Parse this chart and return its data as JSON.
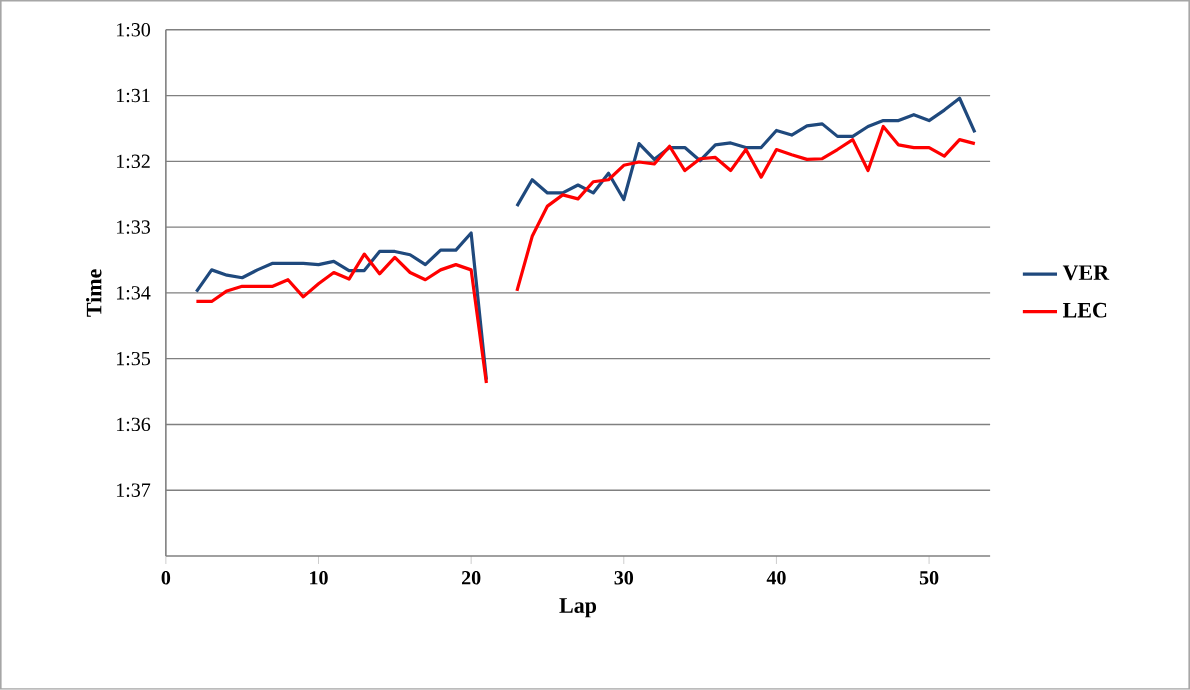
{
  "chart_data": {
    "type": "line",
    "xlabel": "Lap",
    "ylabel": "Time",
    "xlim": [
      0,
      54
    ],
    "xticks": [
      0,
      10,
      20,
      30,
      40,
      50
    ],
    "ylim": [
      98,
      90
    ],
    "yticks": [
      {
        "value": 90,
        "label": "1:30"
      },
      {
        "value": 91,
        "label": "1:31"
      },
      {
        "value": 92,
        "label": "1:32"
      },
      {
        "value": 93,
        "label": "1:33"
      },
      {
        "value": 94,
        "label": "1:34"
      },
      {
        "value": 95,
        "label": "1:35"
      },
      {
        "value": 96,
        "label": "1:36"
      },
      {
        "value": 97,
        "label": "1:37"
      }
    ],
    "x": [
      2,
      3,
      4,
      5,
      6,
      7,
      8,
      9,
      10,
      11,
      12,
      13,
      14,
      15,
      16,
      17,
      18,
      19,
      20,
      21,
      22,
      23,
      24,
      25,
      26,
      27,
      28,
      29,
      30,
      31,
      32,
      33,
      34,
      35,
      36,
      37,
      38,
      39,
      40,
      41,
      42,
      43,
      44,
      45,
      46,
      47,
      48,
      49,
      50,
      51,
      52,
      53
    ],
    "series": [
      {
        "name": "VER",
        "color": "#1f497d",
        "values": [
          93.98,
          93.65,
          93.73,
          93.77,
          93.65,
          93.55,
          93.55,
          93.55,
          93.57,
          93.52,
          93.66,
          93.66,
          93.37,
          93.37,
          93.42,
          93.57,
          93.35,
          93.35,
          93.09,
          95.32,
          null,
          92.68,
          92.28,
          92.48,
          92.48,
          92.36,
          92.48,
          92.18,
          92.58,
          91.73,
          91.97,
          91.79,
          91.79,
          91.99,
          91.75,
          91.72,
          91.79,
          91.79,
          91.53,
          91.6,
          91.46,
          91.43,
          91.62,
          91.62,
          91.47,
          91.38,
          91.38,
          91.29,
          91.38,
          91.22,
          91.04,
          91.56
        ]
      },
      {
        "name": "LEC",
        "color": "#ff0000",
        "values": [
          94.13,
          94.13,
          93.97,
          93.9,
          93.9,
          93.9,
          93.8,
          94.06,
          93.86,
          93.69,
          93.79,
          93.41,
          93.71,
          93.46,
          93.69,
          93.8,
          93.65,
          93.57,
          93.65,
          95.37,
          null,
          93.97,
          93.14,
          92.68,
          92.51,
          92.57,
          92.31,
          92.28,
          92.06,
          92.01,
          92.04,
          91.77,
          92.14,
          91.96,
          91.94,
          92.14,
          91.82,
          92.24,
          91.82,
          91.9,
          91.97,
          91.96,
          91.82,
          91.67,
          92.14,
          91.47,
          91.75,
          91.79,
          91.79,
          91.92,
          91.67,
          91.73
        ]
      }
    ],
    "grid": "y",
    "legend": "right"
  }
}
